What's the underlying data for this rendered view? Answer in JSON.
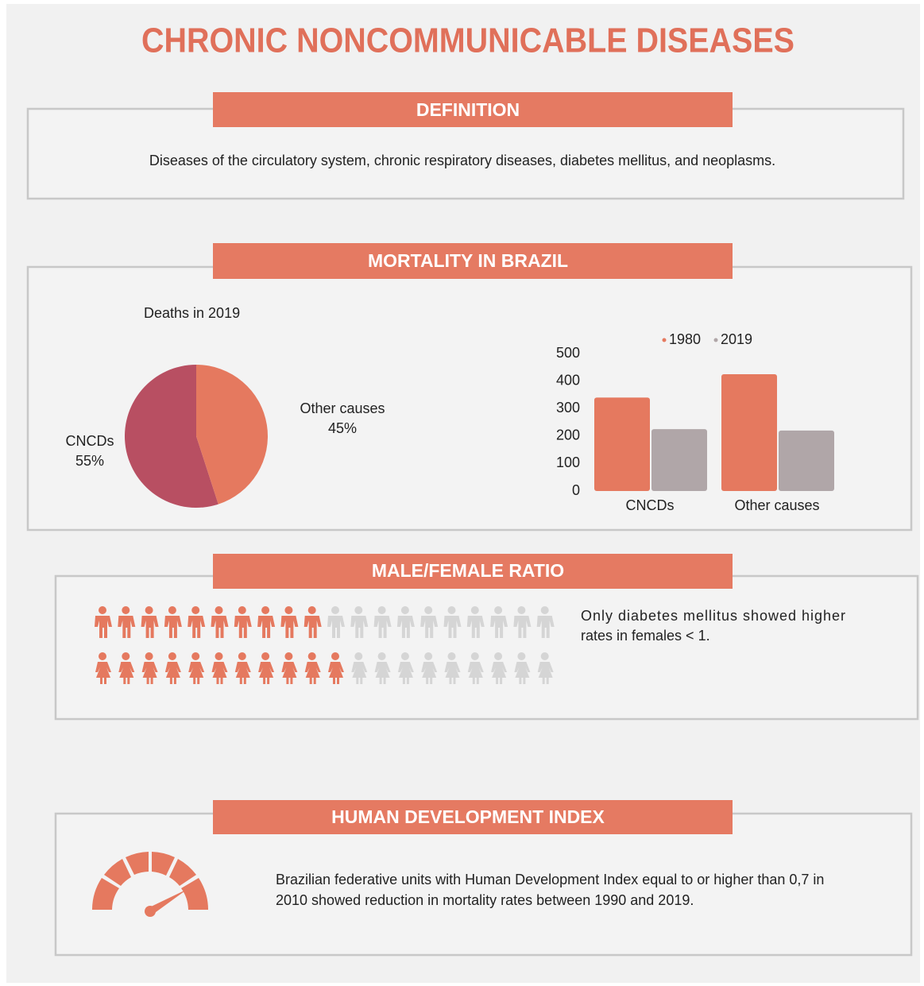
{
  "title": "CHRONIC NONCOMMUNICABLE DISEASES",
  "definition": {
    "heading": "DEFINITION",
    "text": "Diseases of the circulatory system, chronic respiratory diseases, diabetes mellitus, and neoplasms."
  },
  "mortality": {
    "heading": "MORTALITY IN BRAZIL"
  },
  "chart_data": [
    {
      "type": "pie",
      "title": "Deaths in 2019",
      "categories": [
        "CNCDs",
        "Other causes"
      ],
      "values": [
        55,
        45
      ],
      "value_labels": [
        "55%",
        "45%"
      ],
      "colors": [
        "#b84f62",
        "#e5795f"
      ]
    },
    {
      "type": "bar",
      "categories": [
        "CNCDs",
        "Other causes"
      ],
      "series": [
        {
          "name": "1980",
          "color": "#e5795f",
          "values": [
            340,
            425
          ]
        },
        {
          "name": "2019",
          "color": "#b0a6a8",
          "values": [
            225,
            220
          ]
        }
      ],
      "ylim": [
        0,
        500
      ],
      "yticks": [
        0,
        100,
        200,
        300,
        400,
        500
      ],
      "legend": "top"
    }
  ],
  "ratio": {
    "heading": "MALE/FEMALE RATIO",
    "rows": [
      {
        "highlighted": 10,
        "total": 20
      },
      {
        "highlighted": 11,
        "total": 20
      }
    ],
    "text_lines": [
      "Only diabetes mellitus showed higher",
      "rates in females < 1."
    ]
  },
  "hdi": {
    "heading": "HUMAN DEVELOPMENT INDEX",
    "text_lines": [
      "Brazilian federative units with Human Development Index equal to or higher than 0,7 in",
      "2010 showed reduction in mortality rates between 1990 and 2019."
    ]
  }
}
